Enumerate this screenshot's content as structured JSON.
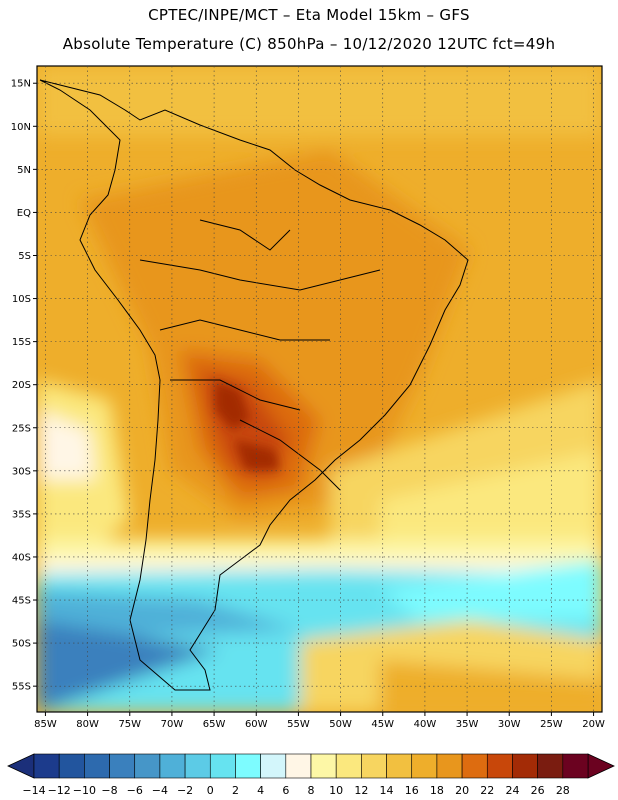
{
  "header": {
    "line1": "CPTEC/INPE/MCT –  Eta Model 15km – GFS",
    "line2": "Absolute Temperature (C) 850hPa – 10/12/2020 12UTC fct=49h"
  },
  "map": {
    "lon_range": [
      -86,
      -19
    ],
    "lat_range": [
      -58,
      17
    ],
    "lat_ticks": [
      "15N",
      "10N",
      "5N",
      "EQ",
      "5S",
      "10S",
      "15S",
      "20S",
      "25S",
      "30S",
      "35S",
      "40S",
      "45S",
      "50S",
      "55S"
    ],
    "lat_values": [
      15,
      10,
      5,
      0,
      -5,
      -10,
      -15,
      -20,
      -25,
      -30,
      -35,
      -40,
      -45,
      -50,
      -55
    ],
    "lon_ticks": [
      "85W",
      "80W",
      "75W",
      "70W",
      "65W",
      "60W",
      "55W",
      "50W",
      "45W",
      "40W",
      "35W",
      "30W",
      "25W",
      "20W"
    ],
    "lon_values": [
      -85,
      -80,
      -75,
      -70,
      -65,
      -60,
      -55,
      -50,
      -45,
      -40,
      -35,
      -30,
      -25,
      -20
    ]
  },
  "colorbar": {
    "labels": [
      "-14",
      "-12",
      "-10",
      "-8",
      "-6",
      "-4",
      "-2",
      "0",
      "2",
      "4",
      "6",
      "8",
      "10",
      "12",
      "14",
      "16",
      "18",
      "20",
      "22",
      "24",
      "26",
      "28"
    ],
    "colors": [
      "#1c3b8c",
      "#22559e",
      "#2d6aae",
      "#3a80bd",
      "#4696c8",
      "#4fb0d8",
      "#5ccbe6",
      "#66e3f0",
      "#7dfcff",
      "#d3f6fb",
      "#fff6e6",
      "#fdf7a6",
      "#fbe87e",
      "#f7d560",
      "#f2c040",
      "#eeae2b",
      "#e8961d",
      "#dd6c10",
      "#c8470a",
      "#a32b06",
      "#7a1c10",
      "#6b0220"
    ],
    "left_end_color": "#1b2f7a",
    "right_end_color": "#6b0220"
  }
}
